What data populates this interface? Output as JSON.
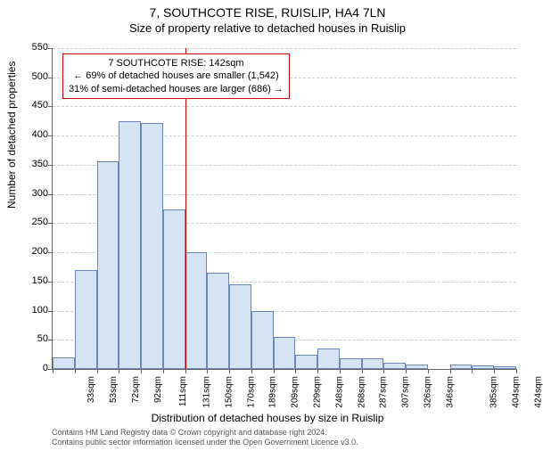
{
  "title": "7, SOUTHCOTE RISE, RUISLIP, HA4 7LN",
  "subtitle": "Size of property relative to detached houses in Ruislip",
  "yaxis_label": "Number of detached properties",
  "xaxis_label": "Distribution of detached houses by size in Ruislip",
  "annotation": {
    "line1": "7 SOUTHCOTE RISE: 142sqm",
    "line2": "← 69% of detached houses are smaller (1,542)",
    "line3": "31% of semi-detached houses are larger (686) →"
  },
  "footnote": {
    "line1": "Contains HM Land Registry data © Crown copyright and database right 2024.",
    "line2": "Contains public sector information licensed under the Open Government Licence v3.0."
  },
  "chart": {
    "type": "histogram",
    "ylim": [
      0,
      550
    ],
    "ytick_step": 50,
    "yticks": [
      0,
      50,
      100,
      150,
      200,
      250,
      300,
      350,
      400,
      450,
      500,
      550
    ],
    "categories": [
      "33sqm",
      "53sqm",
      "72sqm",
      "92sqm",
      "111sqm",
      "131sqm",
      "150sqm",
      "170sqm",
      "189sqm",
      "209sqm",
      "229sqm",
      "248sqm",
      "268sqm",
      "287sqm",
      "307sqm",
      "326sqm",
      "346sqm",
      "",
      "385sqm",
      "404sqm",
      "424sqm"
    ],
    "values": [
      20,
      170,
      356,
      425,
      421,
      274,
      200,
      165,
      145,
      100,
      55,
      25,
      35,
      18,
      18,
      10,
      8,
      0,
      8,
      6,
      4
    ],
    "bar_fill": "#d5e4f5",
    "bar_border": "#6b89b8",
    "grid_color": "#cccccc",
    "axis_color": "#666666",
    "background_color": "#ffffff",
    "reference_line_bin_index": 5,
    "reference_line_color": "#cc0000",
    "annotation_border": "#cc0000",
    "title_fontsize": 14,
    "subtitle_fontsize": 13,
    "axis_label_fontsize": 12,
    "tick_fontsize": 11,
    "xtick_fontsize": 10,
    "footnote_fontsize": 9,
    "footnote_color": "#555555"
  }
}
